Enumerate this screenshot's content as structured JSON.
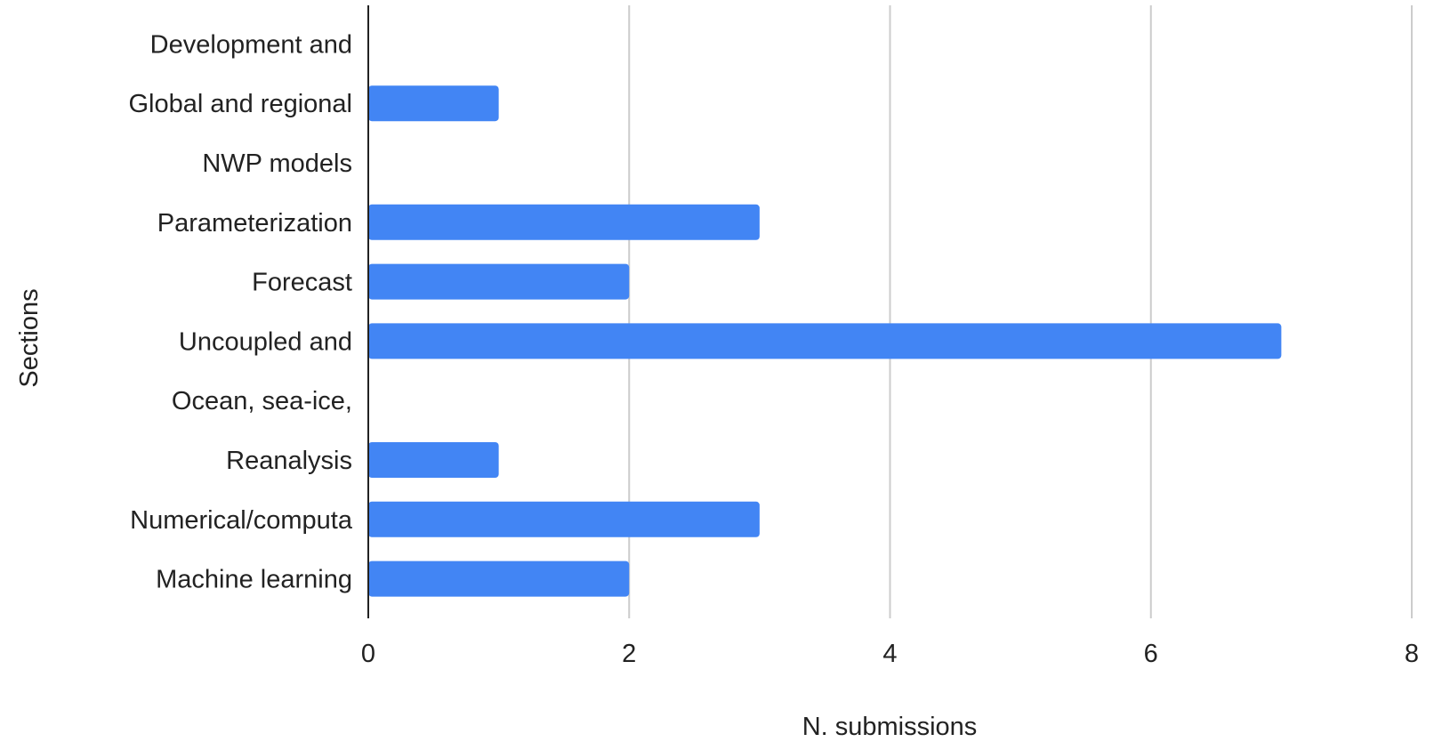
{
  "chart_data": {
    "type": "bar",
    "orientation": "horizontal",
    "title": "",
    "xlabel": "N. submissions",
    "ylabel": "Sections",
    "categories": [
      "Development and",
      "Global and regional",
      "NWP models",
      "Parameterization",
      "Forecast",
      "Uncoupled and",
      "Ocean, sea-ice,",
      "Reanalysis",
      "Numerical/computa",
      "Machine learning"
    ],
    "values": [
      0,
      1,
      0,
      3,
      2,
      7,
      0,
      1,
      3,
      2
    ],
    "xlim": [
      0,
      8
    ],
    "xticks": [
      "0",
      "2",
      "4",
      "6",
      "8"
    ],
    "grid": true,
    "legend": "none",
    "colors": {
      "bar": "#4285f4",
      "grid": "#cccccc",
      "axis": "#222222"
    }
  }
}
